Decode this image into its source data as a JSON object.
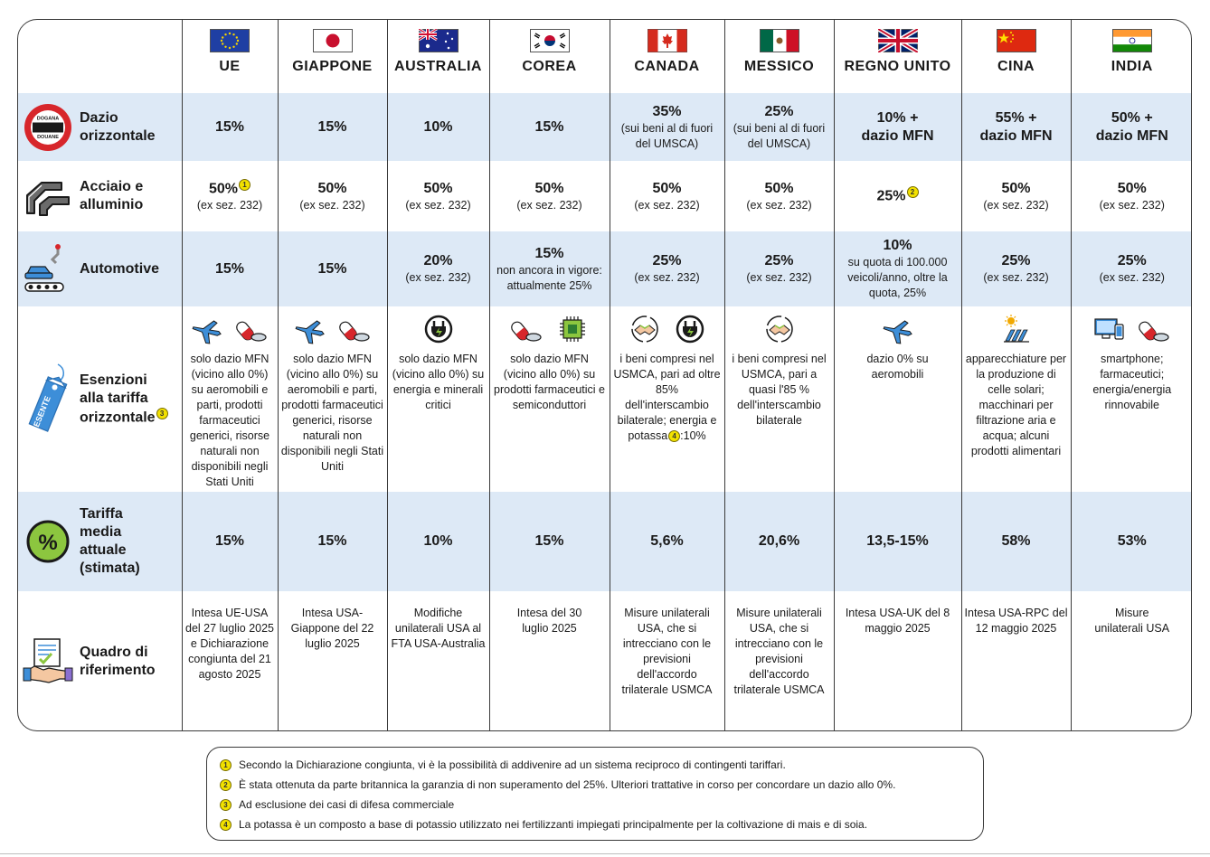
{
  "countries": [
    {
      "name": "UE",
      "flag": "eu-flag"
    },
    {
      "name": "GIAPPONE",
      "flag": "japan-flag"
    },
    {
      "name": "AUSTRALIA",
      "flag": "australia-flag"
    },
    {
      "name": "COREA",
      "flag": "korea-flag"
    },
    {
      "name": "CANADA",
      "flag": "canada-flag"
    },
    {
      "name": "MESSICO",
      "flag": "mexico-flag"
    },
    {
      "name": "REGNO UNITO",
      "flag": "uk-flag"
    },
    {
      "name": "CINA",
      "flag": "china-flag"
    },
    {
      "name": "INDIA",
      "flag": "india-flag"
    }
  ],
  "rows": {
    "dazio": {
      "label": "Dazio orizzontale",
      "icon": "customs-stop-icon",
      "icon_text_top": "DOGANA",
      "icon_text_bottom": "DOUANE",
      "cells": [
        {
          "main": "15%",
          "sub": ""
        },
        {
          "main": "15%",
          "sub": ""
        },
        {
          "main": "10%",
          "sub": ""
        },
        {
          "main": "15%",
          "sub": ""
        },
        {
          "main": "35%",
          "sub": "(sui beni al di fuori del UMSCA)"
        },
        {
          "main": "25%",
          "sub": "(sui beni al di fuori del UMSCA)"
        },
        {
          "main": "10% + dazio MFN",
          "sub": ""
        },
        {
          "main": "55% + dazio MFN",
          "sub": ""
        },
        {
          "main": "50% + dazio MFN",
          "sub": ""
        }
      ]
    },
    "acciaio": {
      "label": "Acciaio e alluminio",
      "icon": "steel-beams-icon",
      "cells": [
        {
          "main": "50%",
          "sub": "(ex sez. 232)",
          "note": "1"
        },
        {
          "main": "50%",
          "sub": "(ex sez. 232)"
        },
        {
          "main": "50%",
          "sub": "(ex sez. 232)"
        },
        {
          "main": "50%",
          "sub": "(ex sez. 232)"
        },
        {
          "main": "50%",
          "sub": "(ex sez. 232)"
        },
        {
          "main": "50%",
          "sub": "(ex sez. 232)"
        },
        {
          "main": "25%",
          "sub": "",
          "note": "2"
        },
        {
          "main": "50%",
          "sub": "(ex sez. 232)"
        },
        {
          "main": "50%",
          "sub": "(ex sez. 232)"
        }
      ]
    },
    "automotive": {
      "label": "Automotive",
      "icon": "car-assembly-icon",
      "cells": [
        {
          "main": "15%",
          "sub": ""
        },
        {
          "main": "15%",
          "sub": ""
        },
        {
          "main": "20%",
          "sub": "(ex sez. 232)"
        },
        {
          "main": "15%",
          "sub": "non ancora in vigore: attualmente 25%"
        },
        {
          "main": "25%",
          "sub": "(ex sez. 232)"
        },
        {
          "main": "25%",
          "sub": "(ex sez. 232)"
        },
        {
          "main": "10%",
          "sub": "su quota di 100.000 veicoli/anno, oltre la quota, 25%"
        },
        {
          "main": "25%",
          "sub": "(ex sez. 232)"
        },
        {
          "main": "25%",
          "sub": "(ex sez. 232)"
        }
      ]
    },
    "esenzioni": {
      "label": "Esenzioni alla tariffa orizzontale",
      "note": "3",
      "icon": "tag-icon",
      "icon_text": "ESENTE",
      "cells": [
        {
          "icons": [
            "airplane-icon",
            "pills-icon"
          ],
          "text": "solo dazio MFN (vicino allo 0%) su aeromobili e parti, prodotti farmaceutici generici, risorse naturali non disponibili negli Stati Uniti"
        },
        {
          "icons": [
            "airplane-icon",
            "pills-icon"
          ],
          "text": "solo dazio MFN (vicino allo 0%) su aeromobili e parti, prodotti farmaceutici generici, risorse naturali non disponibili negli Stati Uniti"
        },
        {
          "icons": [
            "energy-plug-icon"
          ],
          "text": "solo dazio MFN (vicino allo 0%) su energia e minerali critici"
        },
        {
          "icons": [
            "pills-icon",
            "chip-icon"
          ],
          "text": "solo dazio MFN (vicino allo 0%) su prodotti farmaceutici e semiconduttori"
        },
        {
          "icons": [
            "handshake-cycle-icon",
            "energy-plug-icon"
          ],
          "text": "i beni compresi nel USMCA, pari ad oltre 85% dell'interscambio bilaterale; energia e potassa",
          "text_after_note": ":10%",
          "note": "4"
        },
        {
          "icons": [
            "handshake-cycle-icon"
          ],
          "text": "i beni compresi nel USMCA, pari a quasi l'85 % dell'interscambio bilaterale"
        },
        {
          "icons": [
            "airplane-icon"
          ],
          "text": "dazio 0% su aeromobili"
        },
        {
          "icons": [
            "solar-panel-icon"
          ],
          "text": "apparecchiature per la produzione di celle solari; macchinari per filtrazione aria e acqua; alcuni prodotti alimentari"
        },
        {
          "icons": [
            "devices-icon",
            "pills-icon"
          ],
          "text": "smartphone; farmaceutici; energia/energia rinnovabile"
        }
      ]
    },
    "media": {
      "label": "Tariffa media attuale (stimata)",
      "icon": "percent-icon",
      "icon_text": "%",
      "cells": [
        "15%",
        "15%",
        "10%",
        "15%",
        "5,6%",
        "20,6%",
        "13,5-15%",
        "58%",
        "53%"
      ]
    },
    "quadro": {
      "label": "Quadro di riferimento",
      "icon": "agreement-handshake-icon",
      "cells": [
        "Intesa UE-USA del 27 luglio 2025 e Dichiarazione congiunta del 21 agosto 2025",
        "Intesa USA-Giappone del 22 luglio 2025",
        "Modifiche unilaterali USA al FTA USA-Australia",
        "Intesa del 30 luglio 2025",
        "Misure unilaterali USA, che si intrecciano con le previsioni dell'accordo trilaterale USMCA",
        "Misure unilaterali USA, che si intrecciano con le previsioni dell'accordo trilaterale USMCA",
        "Intesa USA-UK del 8 maggio 2025",
        "Intesa USA-RPC del 12 maggio 2025",
        "Misure unilaterali USA"
      ]
    }
  },
  "notes": [
    {
      "marker": "1",
      "text": "Secondo la Dichiarazione congiunta, vi è la possibilità di addivenire ad un sistema reciproco di contingenti tariffari."
    },
    {
      "marker": "2",
      "text": "È stata ottenuta da parte britannica la garanzia di non superamento del 25%. Ulteriori trattative in corso per concordare un dazio allo 0%."
    },
    {
      "marker": "3",
      "text": "Ad esclusione dei casi di difesa commerciale"
    },
    {
      "marker": "4",
      "text": "La potassa è un composto a base di potassio utilizzato nei fertilizzanti impiegati principalmente per la coltivazione di mais e di soia."
    }
  ],
  "colors": {
    "band": "#dde9f6",
    "border": "#3a3a3a",
    "note_marker": "#f2e100",
    "stop_red": "#d7262b",
    "percent_green": "#8cc63f",
    "tag_blue": "#3d8ed8"
  }
}
